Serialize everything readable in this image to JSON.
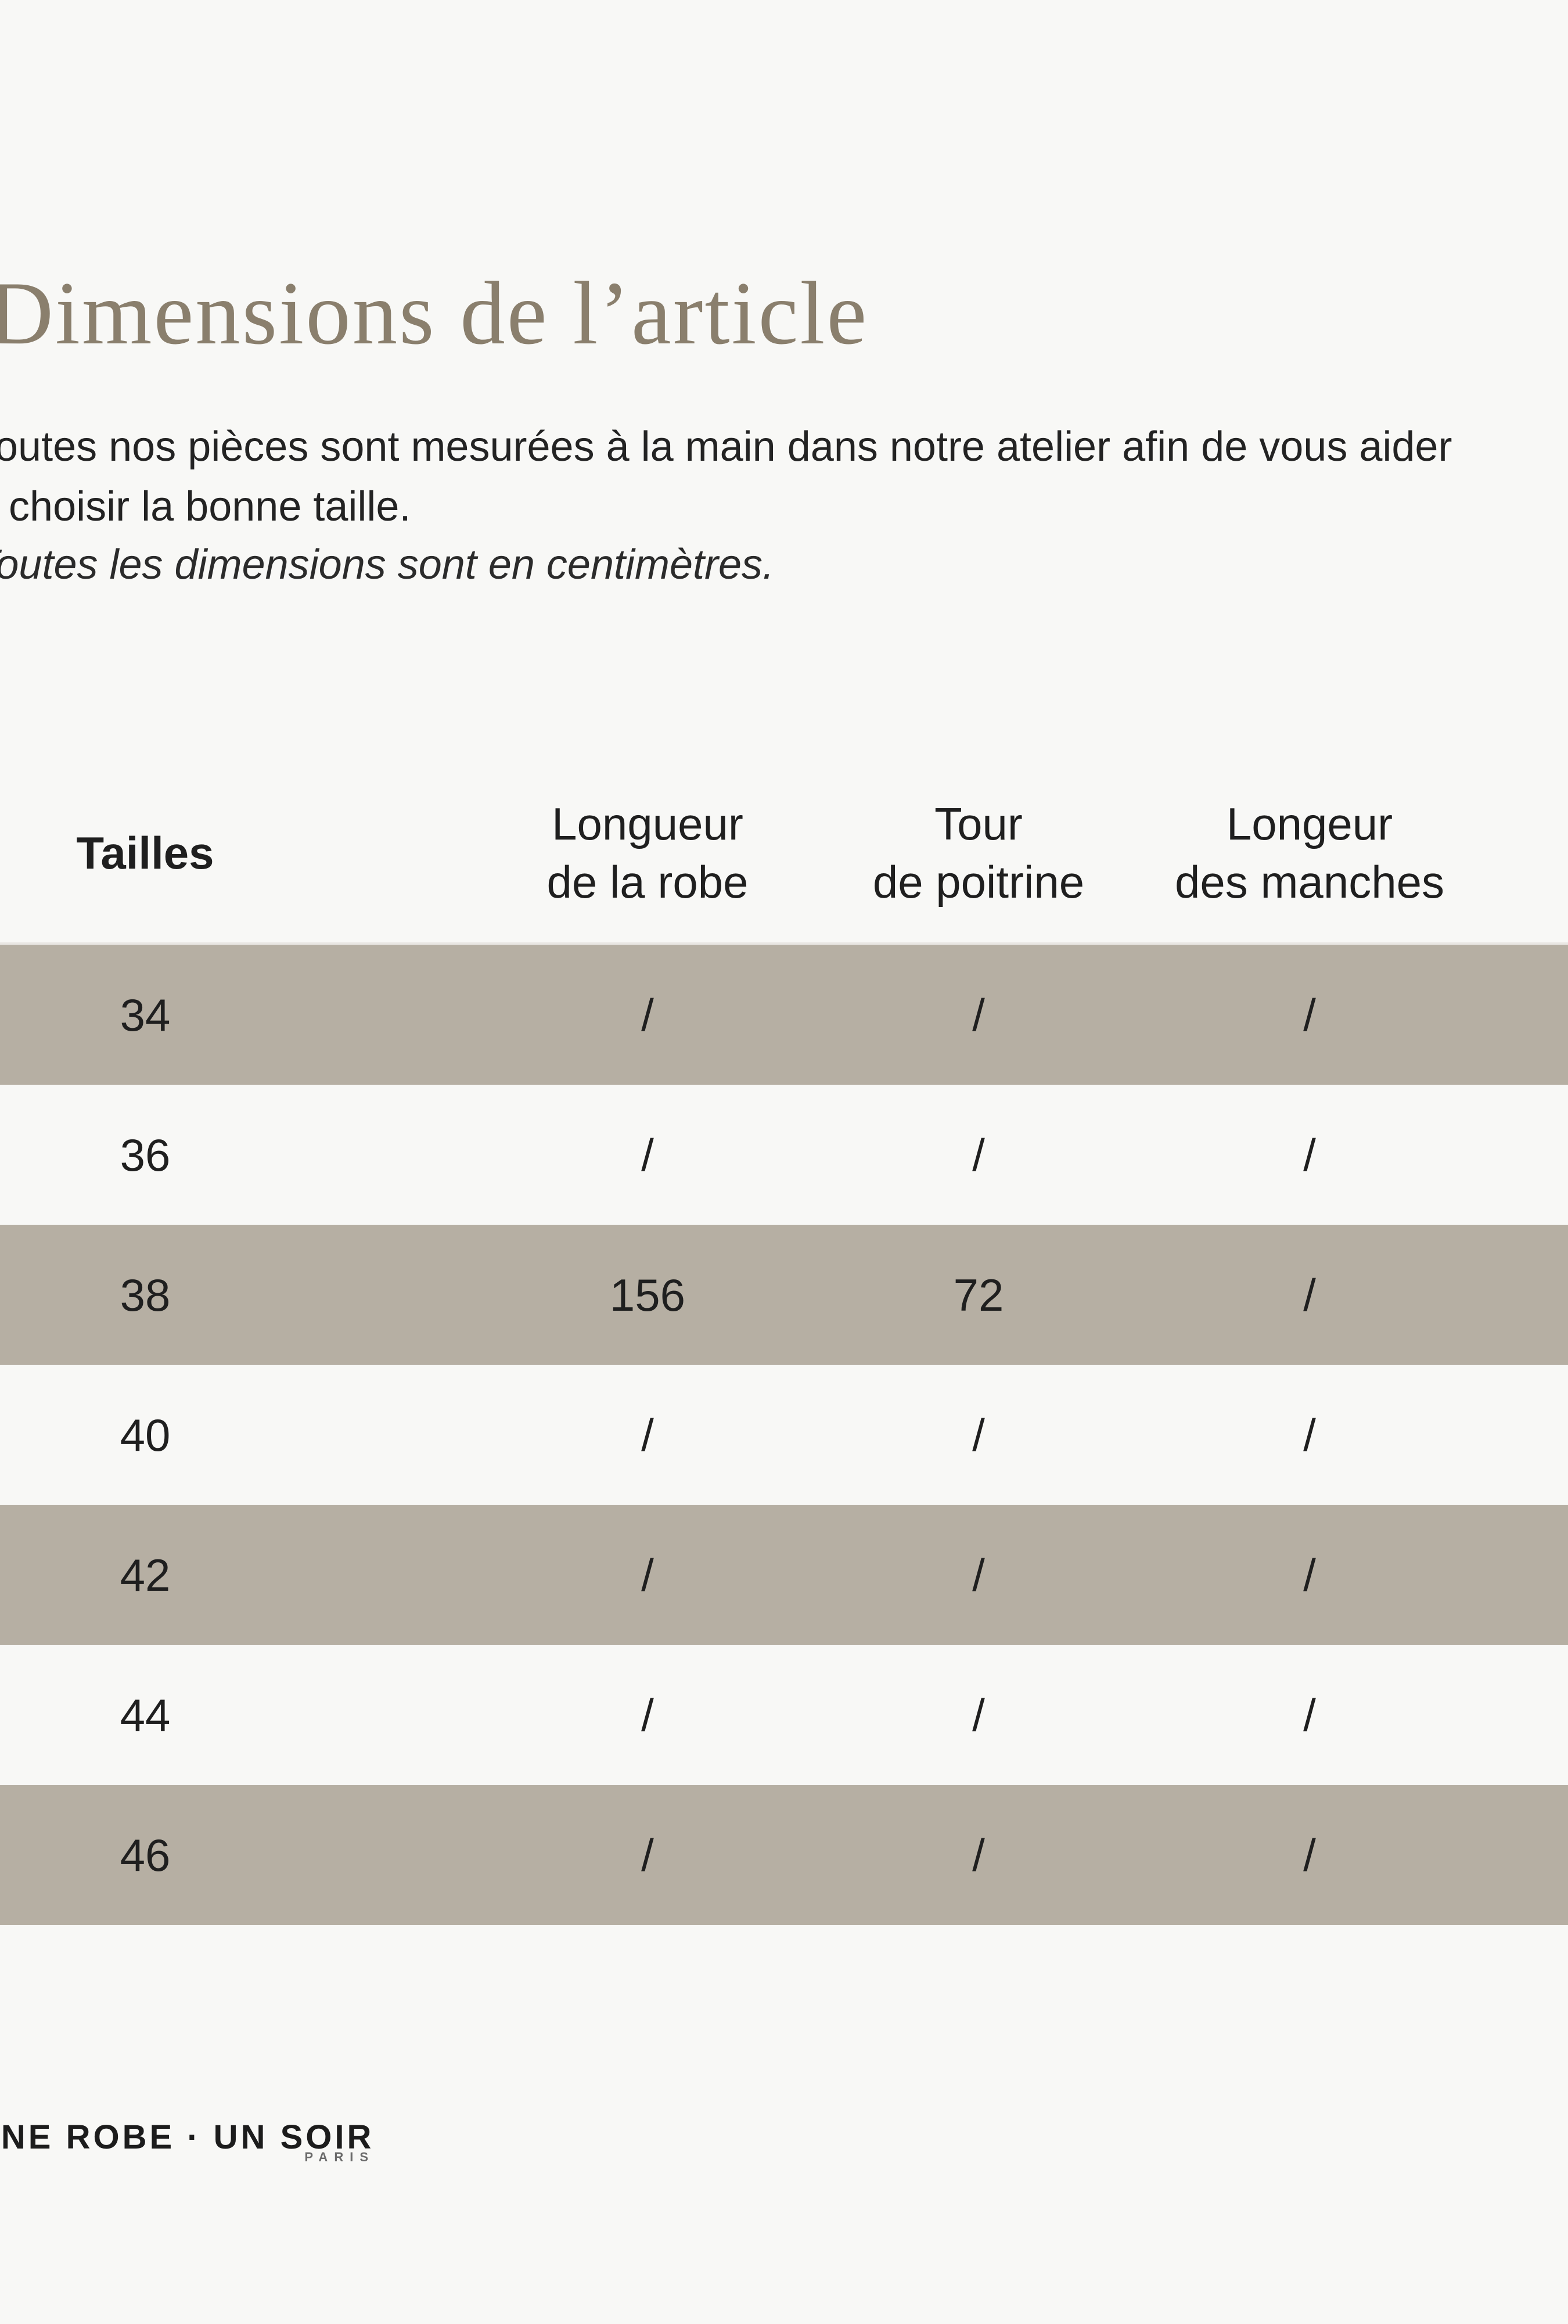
{
  "page": {
    "title": "Dimensions de l’article",
    "intro_line1": "Toutes nos pièces sont mesurées à la main dans notre atelier afin de vous aider",
    "intro_line2": "à choisir la bonne taille.",
    "note": "Toutes les dimensions sont en centimètres.",
    "brand": {
      "wordmark": "UNE ROBE · UN SOIR",
      "city": "PARIS"
    }
  },
  "table": {
    "headers": [
      {
        "line1": "Tailles",
        "line2": ""
      },
      {
        "line1": "Longueur",
        "line2": "de la robe"
      },
      {
        "line1": "Tour",
        "line2": "de poitrine"
      },
      {
        "line1": "Longeur",
        "line2": "des manches"
      }
    ],
    "rows": [
      {
        "size": "34",
        "longueur_robe": "/",
        "tour_poitrine": "/",
        "longeur_manches": "/"
      },
      {
        "size": "36",
        "longueur_robe": "/",
        "tour_poitrine": "/",
        "longeur_manches": "/"
      },
      {
        "size": "38",
        "longueur_robe": "156",
        "tour_poitrine": "72",
        "longeur_manches": "/"
      },
      {
        "size": "40",
        "longueur_robe": "/",
        "tour_poitrine": "/",
        "longeur_manches": "/"
      },
      {
        "size": "42",
        "longueur_robe": "/",
        "tour_poitrine": "/",
        "longeur_manches": "/"
      },
      {
        "size": "44",
        "longueur_robe": "/",
        "tour_poitrine": "/",
        "longeur_manches": "/"
      },
      {
        "size": "46",
        "longueur_robe": "/",
        "tour_poitrine": "/",
        "longeur_manches": "/"
      }
    ]
  },
  "colors": {
    "background": "#f8f8f6",
    "band": "#b6afa3",
    "title": "#8a7f6d",
    "text": "#232323"
  }
}
